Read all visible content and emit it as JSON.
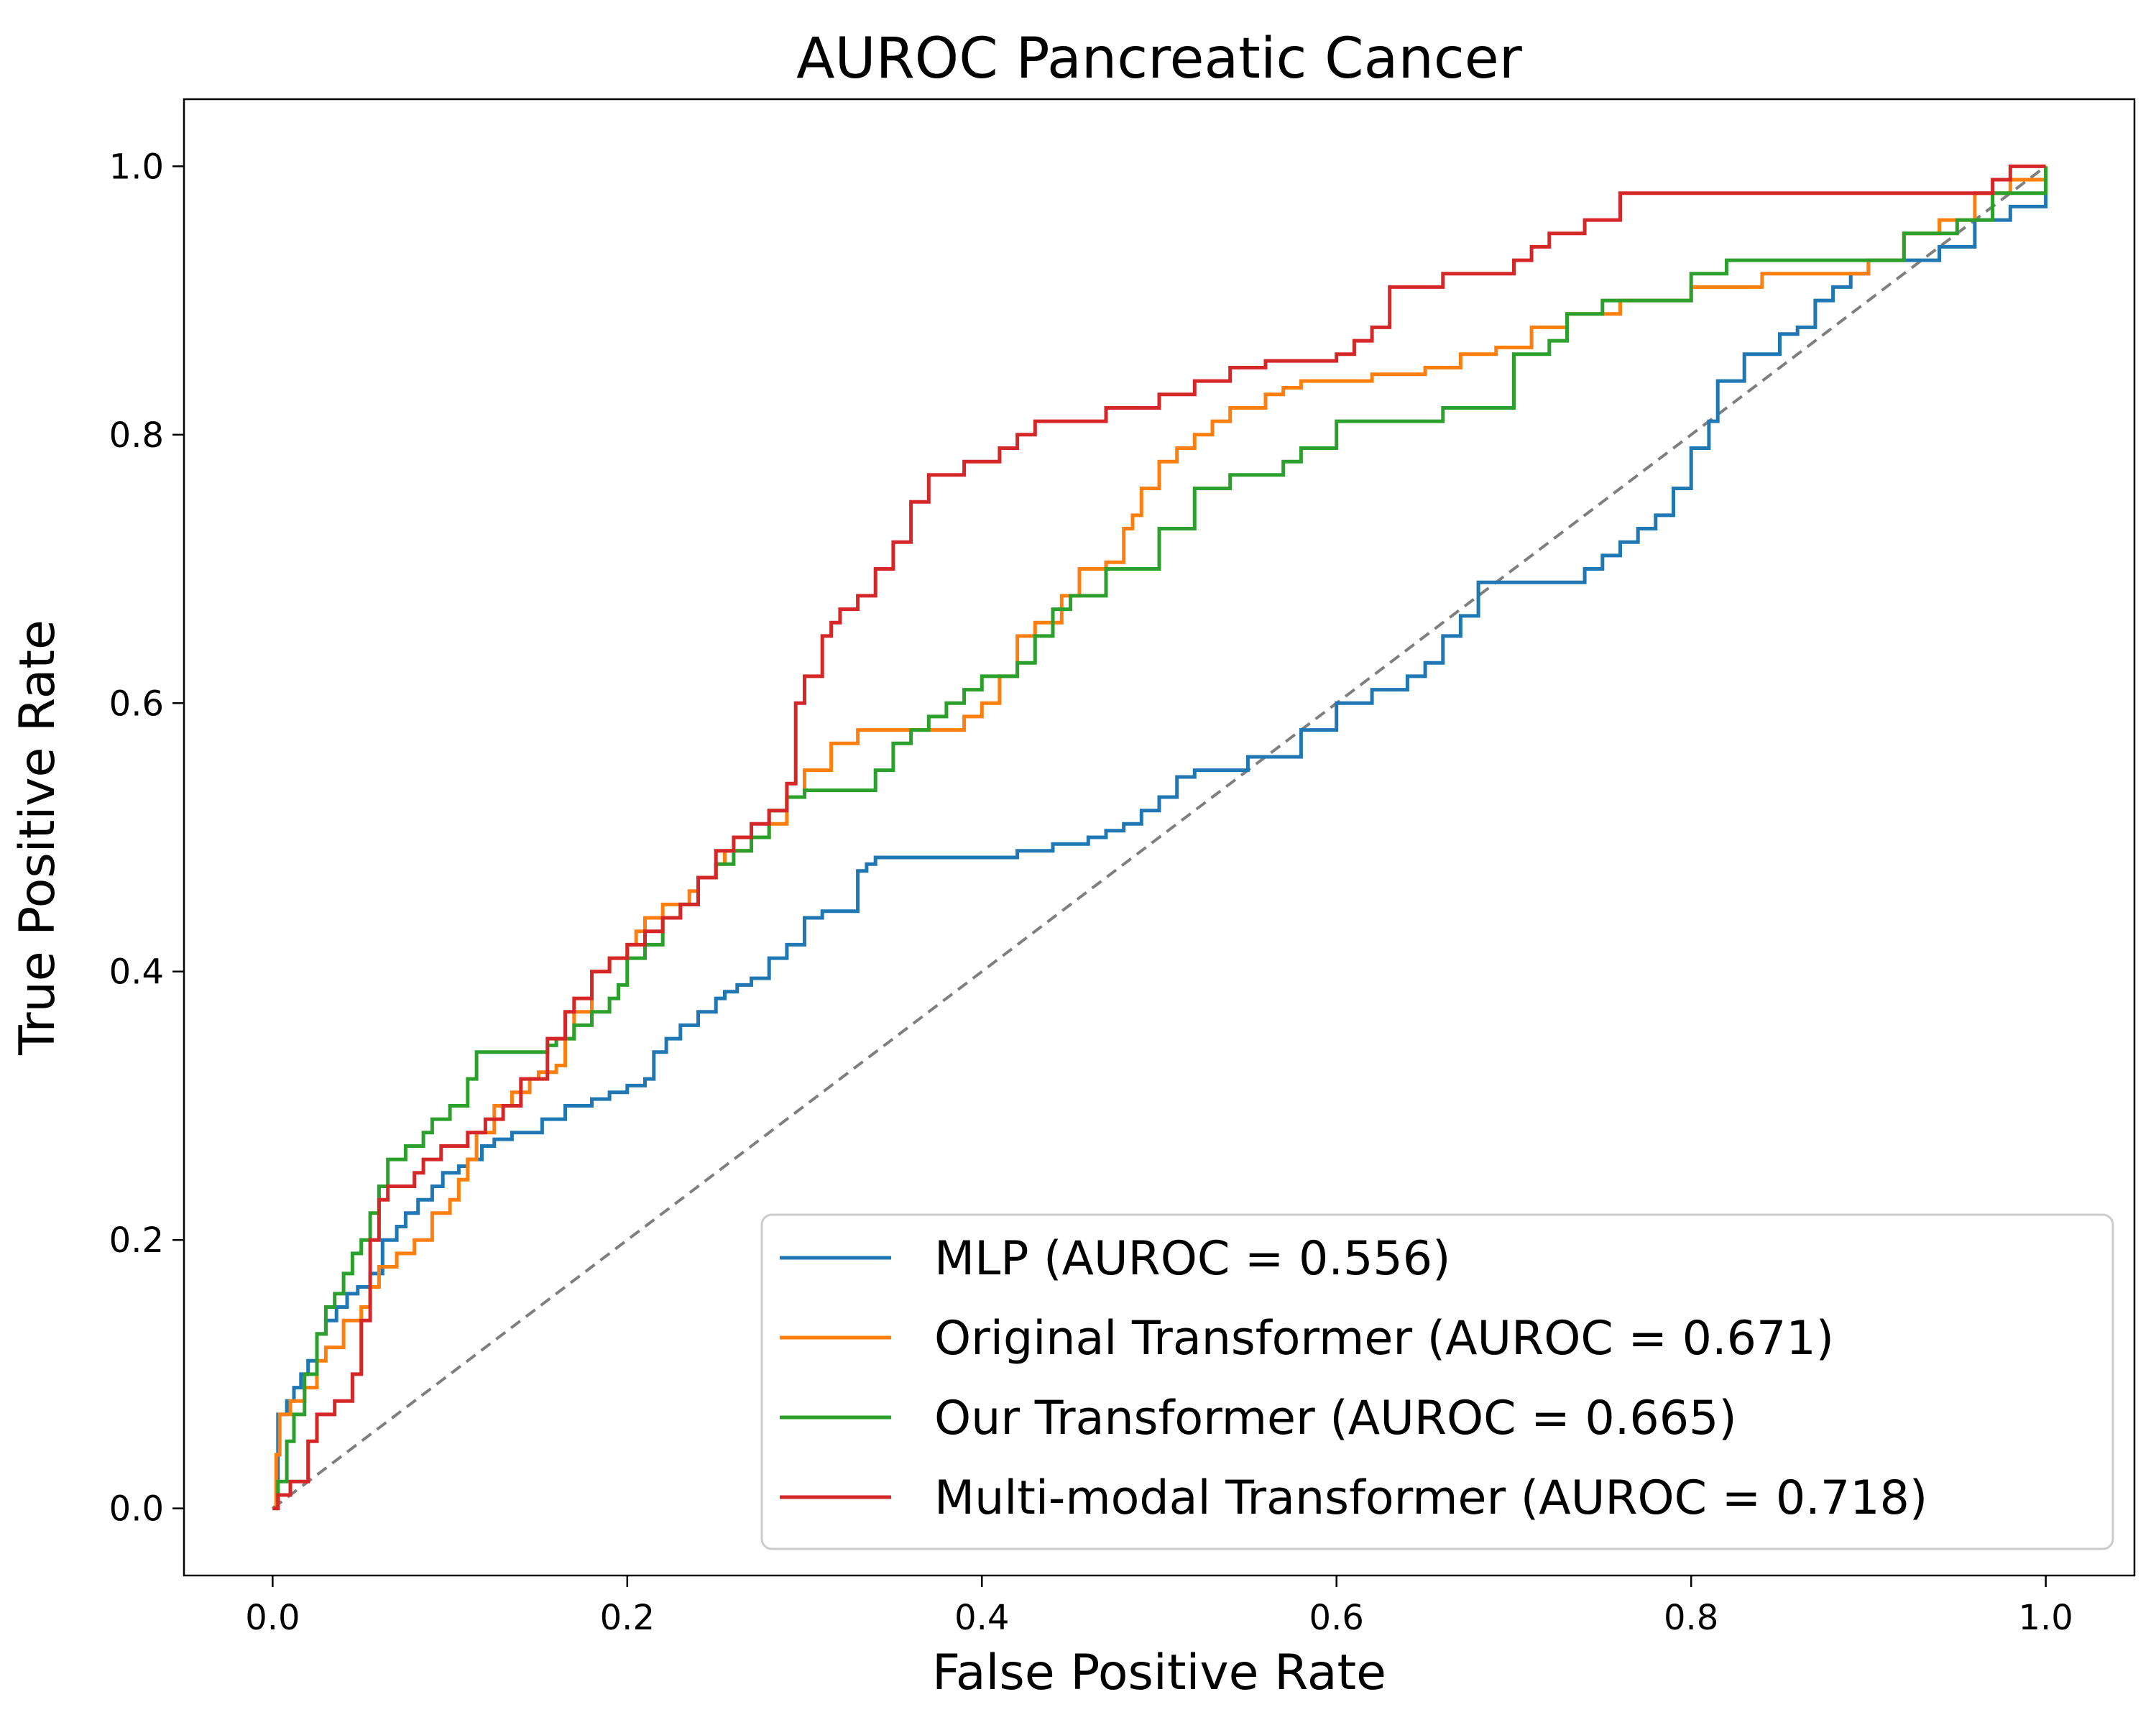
{
  "chart_data": {
    "type": "line",
    "title": "AUROC Pancreatic Cancer",
    "xlabel": "False Positive Rate",
    "ylabel": "True Positive Rate",
    "xlim": [
      -0.05,
      1.05
    ],
    "ylim": [
      -0.05,
      1.05
    ],
    "xticks": [
      "0.0",
      "0.2",
      "0.4",
      "0.6",
      "0.8",
      "1.0"
    ],
    "yticks": [
      "0.0",
      "0.2",
      "0.4",
      "0.6",
      "0.8",
      "1.0"
    ],
    "grid": false,
    "legend_position": "lower-right",
    "reference_line": {
      "x": [
        0,
        1
      ],
      "y": [
        0,
        1
      ],
      "color": "#7f7f7f",
      "style": "dashed"
    },
    "series": [
      {
        "name": "MLP (AUROC = 0.556)",
        "color": "#1f77b4",
        "x": [
          0,
          0.003,
          0.008,
          0.012,
          0.016,
          0.02,
          0.025,
          0.03,
          0.036,
          0.042,
          0.048,
          0.055,
          0.062,
          0.07,
          0.075,
          0.082,
          0.09,
          0.096,
          0.105,
          0.11,
          0.118,
          0.125,
          0.135,
          0.145,
          0.152,
          0.165,
          0.18,
          0.19,
          0.2,
          0.21,
          0.215,
          0.222,
          0.23,
          0.24,
          0.25,
          0.255,
          0.262,
          0.27,
          0.28,
          0.29,
          0.3,
          0.31,
          0.32,
          0.33,
          0.335,
          0.34,
          0.35,
          0.38,
          0.42,
          0.44,
          0.46,
          0.47,
          0.48,
          0.49,
          0.5,
          0.51,
          0.52,
          0.55,
          0.58,
          0.6,
          0.62,
          0.64,
          0.65,
          0.66,
          0.67,
          0.68,
          0.7,
          0.74,
          0.75,
          0.76,
          0.77,
          0.78,
          0.79,
          0.8,
          0.81,
          0.815,
          0.83,
          0.85,
          0.86,
          0.87,
          0.88,
          0.89,
          0.9,
          0.92,
          0.94,
          0.96,
          0.98,
          1.0
        ],
        "y": [
          0,
          0.07,
          0.08,
          0.09,
          0.1,
          0.11,
          0.13,
          0.14,
          0.15,
          0.16,
          0.165,
          0.175,
          0.2,
          0.21,
          0.22,
          0.23,
          0.24,
          0.25,
          0.255,
          0.26,
          0.27,
          0.275,
          0.28,
          0.28,
          0.29,
          0.3,
          0.305,
          0.31,
          0.315,
          0.32,
          0.34,
          0.35,
          0.36,
          0.37,
          0.38,
          0.385,
          0.39,
          0.395,
          0.41,
          0.42,
          0.44,
          0.445,
          0.445,
          0.475,
          0.48,
          0.485,
          0.485,
          0.485,
          0.49,
          0.495,
          0.5,
          0.505,
          0.51,
          0.52,
          0.53,
          0.545,
          0.55,
          0.56,
          0.58,
          0.6,
          0.61,
          0.62,
          0.63,
          0.65,
          0.665,
          0.69,
          0.69,
          0.7,
          0.71,
          0.72,
          0.73,
          0.74,
          0.76,
          0.79,
          0.81,
          0.84,
          0.86,
          0.875,
          0.88,
          0.9,
          0.91,
          0.92,
          0.93,
          0.93,
          0.94,
          0.96,
          0.97,
          1.0
        ]
      },
      {
        "name": "Original Transformer (AUROC = 0.671)",
        "color": "#ff7f0e",
        "x": [
          0,
          0.002,
          0.004,
          0.01,
          0.018,
          0.025,
          0.03,
          0.04,
          0.05,
          0.055,
          0.06,
          0.07,
          0.08,
          0.09,
          0.1,
          0.105,
          0.11,
          0.115,
          0.125,
          0.135,
          0.145,
          0.15,
          0.16,
          0.165,
          0.17,
          0.18,
          0.19,
          0.2,
          0.205,
          0.21,
          0.22,
          0.23,
          0.235,
          0.24,
          0.25,
          0.255,
          0.27,
          0.28,
          0.29,
          0.3,
          0.315,
          0.33,
          0.36,
          0.39,
          0.4,
          0.41,
          0.42,
          0.43,
          0.445,
          0.455,
          0.47,
          0.48,
          0.48,
          0.485,
          0.49,
          0.5,
          0.51,
          0.52,
          0.53,
          0.54,
          0.55,
          0.56,
          0.57,
          0.58,
          0.6,
          0.62,
          0.65,
          0.67,
          0.69,
          0.71,
          0.73,
          0.76,
          0.78,
          0.79,
          0.8,
          0.84,
          0.88,
          0.9,
          0.92,
          0.94,
          0.96,
          0.98,
          1.0
        ],
        "y": [
          0,
          0.04,
          0.07,
          0.08,
          0.09,
          0.11,
          0.12,
          0.14,
          0.15,
          0.165,
          0.18,
          0.19,
          0.2,
          0.22,
          0.23,
          0.245,
          0.26,
          0.28,
          0.3,
          0.31,
          0.32,
          0.325,
          0.33,
          0.35,
          0.37,
          0.4,
          0.41,
          0.42,
          0.43,
          0.44,
          0.45,
          0.45,
          0.46,
          0.47,
          0.48,
          0.49,
          0.5,
          0.51,
          0.53,
          0.55,
          0.57,
          0.58,
          0.58,
          0.59,
          0.6,
          0.62,
          0.65,
          0.66,
          0.68,
          0.7,
          0.705,
          0.705,
          0.73,
          0.74,
          0.76,
          0.78,
          0.79,
          0.8,
          0.81,
          0.82,
          0.82,
          0.83,
          0.835,
          0.84,
          0.84,
          0.845,
          0.85,
          0.86,
          0.865,
          0.88,
          0.89,
          0.9,
          0.9,
          0.9,
          0.91,
          0.92,
          0.92,
          0.93,
          0.95,
          0.96,
          0.98,
          0.99,
          1.0
        ]
      },
      {
        "name": "Our Transformer (AUROC = 0.665)",
        "color": "#2ca02c",
        "x": [
          0,
          0.003,
          0.008,
          0.012,
          0.018,
          0.025,
          0.03,
          0.035,
          0.04,
          0.045,
          0.05,
          0.055,
          0.06,
          0.065,
          0.075,
          0.085,
          0.09,
          0.1,
          0.11,
          0.115,
          0.13,
          0.15,
          0.155,
          0.16,
          0.17,
          0.18,
          0.19,
          0.195,
          0.2,
          0.21,
          0.22,
          0.23,
          0.24,
          0.25,
          0.26,
          0.27,
          0.28,
          0.29,
          0.3,
          0.33,
          0.34,
          0.35,
          0.36,
          0.37,
          0.38,
          0.39,
          0.4,
          0.42,
          0.43,
          0.44,
          0.45,
          0.46,
          0.47,
          0.5,
          0.52,
          0.54,
          0.57,
          0.58,
          0.6,
          0.62,
          0.66,
          0.7,
          0.72,
          0.73,
          0.75,
          0.78,
          0.8,
          0.82,
          0.86,
          0.9,
          0.92,
          0.95,
          0.97,
          1.0
        ],
        "y": [
          0,
          0.02,
          0.05,
          0.07,
          0.1,
          0.13,
          0.15,
          0.16,
          0.175,
          0.19,
          0.2,
          0.22,
          0.24,
          0.26,
          0.27,
          0.28,
          0.29,
          0.3,
          0.32,
          0.34,
          0.34,
          0.34,
          0.345,
          0.35,
          0.36,
          0.37,
          0.38,
          0.39,
          0.41,
          0.42,
          0.44,
          0.45,
          0.47,
          0.48,
          0.49,
          0.5,
          0.52,
          0.53,
          0.535,
          0.535,
          0.55,
          0.57,
          0.58,
          0.59,
          0.6,
          0.61,
          0.62,
          0.63,
          0.65,
          0.67,
          0.68,
          0.68,
          0.7,
          0.73,
          0.76,
          0.77,
          0.78,
          0.79,
          0.81,
          0.81,
          0.82,
          0.86,
          0.87,
          0.89,
          0.9,
          0.9,
          0.92,
          0.93,
          0.93,
          0.93,
          0.95,
          0.96,
          0.98,
          1.0
        ]
      },
      {
        "name": "Multi-modal Transformer (AUROC = 0.718)",
        "color": "#d62728",
        "x": [
          0,
          0.003,
          0.01,
          0.02,
          0.025,
          0.035,
          0.045,
          0.05,
          0.055,
          0.06,
          0.065,
          0.08,
          0.085,
          0.095,
          0.11,
          0.12,
          0.13,
          0.14,
          0.155,
          0.165,
          0.17,
          0.18,
          0.19,
          0.2,
          0.21,
          0.22,
          0.23,
          0.24,
          0.25,
          0.26,
          0.27,
          0.28,
          0.29,
          0.295,
          0.3,
          0.31,
          0.315,
          0.32,
          0.33,
          0.34,
          0.35,
          0.36,
          0.37,
          0.38,
          0.39,
          0.41,
          0.42,
          0.43,
          0.44,
          0.47,
          0.5,
          0.52,
          0.54,
          0.56,
          0.6,
          0.61,
          0.62,
          0.63,
          0.66,
          0.7,
          0.71,
          0.72,
          0.74,
          0.75,
          0.76,
          0.8,
          0.84,
          0.9,
          0.95,
          0.97,
          0.98,
          1.0
        ],
        "y": [
          0,
          0.01,
          0.02,
          0.05,
          0.07,
          0.08,
          0.1,
          0.14,
          0.2,
          0.23,
          0.24,
          0.25,
          0.26,
          0.27,
          0.28,
          0.29,
          0.3,
          0.32,
          0.35,
          0.37,
          0.38,
          0.4,
          0.41,
          0.42,
          0.43,
          0.44,
          0.45,
          0.47,
          0.49,
          0.5,
          0.51,
          0.52,
          0.54,
          0.6,
          0.62,
          0.65,
          0.66,
          0.67,
          0.68,
          0.7,
          0.72,
          0.75,
          0.77,
          0.77,
          0.78,
          0.79,
          0.8,
          0.81,
          0.81,
          0.82,
          0.83,
          0.84,
          0.85,
          0.855,
          0.86,
          0.87,
          0.88,
          0.91,
          0.92,
          0.93,
          0.94,
          0.95,
          0.96,
          0.96,
          0.98,
          0.98,
          0.98,
          0.98,
          0.98,
          0.99,
          1.0,
          1.0
        ]
      }
    ]
  }
}
